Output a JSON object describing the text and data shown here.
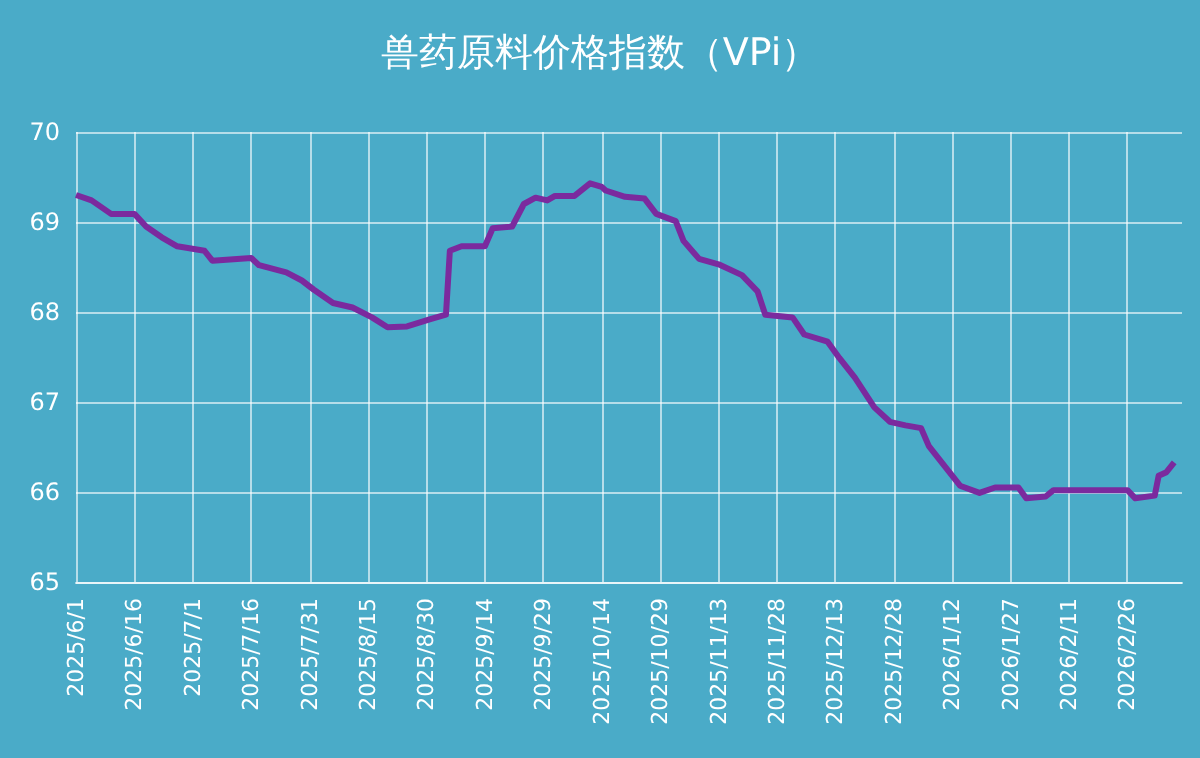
{
  "chart_data": {
    "type": "line",
    "title": "兽药原料价格指数（VPi）",
    "marker": "none",
    "grid": true,
    "xlim": [
      "2025-06-01",
      "2026-03-12"
    ],
    "xticks": [
      {
        "value": "2025-06-01",
        "label": "2025/6/1"
      },
      {
        "value": "2025-06-16",
        "label": "2025/6/16"
      },
      {
        "value": "2025-07-01",
        "label": "2025/7/1"
      },
      {
        "value": "2025-07-16",
        "label": "2025/7/16"
      },
      {
        "value": "2025-07-31",
        "label": "2025/7/31"
      },
      {
        "value": "2025-08-15",
        "label": "2025/8/15"
      },
      {
        "value": "2025-08-30",
        "label": "2025/8/30"
      },
      {
        "value": "2025-09-14",
        "label": "2025/9/14"
      },
      {
        "value": "2025-09-29",
        "label": "2025/9/29"
      },
      {
        "value": "2025-10-14",
        "label": "2025/10/14"
      },
      {
        "value": "2025-10-29",
        "label": "2025/10/29"
      },
      {
        "value": "2025-11-13",
        "label": "2025/11/13"
      },
      {
        "value": "2025-11-28",
        "label": "2025/11/28"
      },
      {
        "value": "2025-12-13",
        "label": "2025/12/13"
      },
      {
        "value": "2025-12-28",
        "label": "2025/12/28"
      },
      {
        "value": "2026-01-12",
        "label": "2026/1/12"
      },
      {
        "value": "2026-01-27",
        "label": "2026/1/27"
      },
      {
        "value": "2026-02-11",
        "label": "2026/2/11"
      },
      {
        "value": "2026-02-26",
        "label": "2026/2/26"
      }
    ],
    "ylim": [
      65,
      70
    ],
    "yticks": [
      65,
      66,
      67,
      68,
      69,
      70
    ],
    "x": [
      "2025-06-01",
      "2025-06-05",
      "2025-06-10",
      "2025-06-16",
      "2025-06-19",
      "2025-06-23",
      "2025-06-27",
      "2025-07-04",
      "2025-07-06",
      "2025-07-16",
      "2025-07-18",
      "2025-07-25",
      "2025-07-29",
      "2025-08-01",
      "2025-08-06",
      "2025-08-11",
      "2025-08-16",
      "2025-08-20",
      "2025-08-25",
      "2025-08-31",
      "2025-09-04",
      "2025-09-05",
      "2025-09-08",
      "2025-09-14",
      "2025-09-16",
      "2025-09-21",
      "2025-09-24",
      "2025-09-27",
      "2025-09-30",
      "2025-10-02",
      "2025-10-07",
      "2025-10-11",
      "2025-10-14",
      "2025-10-15",
      "2025-10-20",
      "2025-10-25",
      "2025-10-28",
      "2025-11-02",
      "2025-11-04",
      "2025-11-08",
      "2025-11-13",
      "2025-11-19",
      "2025-11-23",
      "2025-11-25",
      "2025-12-02",
      "2025-12-05",
      "2025-12-11",
      "2025-12-14",
      "2025-12-18",
      "2025-12-23",
      "2025-12-27",
      "2025-12-31",
      "2026-01-04",
      "2026-01-06",
      "2026-01-10",
      "2026-01-14",
      "2026-01-19",
      "2026-01-23",
      "2026-01-29",
      "2026-01-31",
      "2026-02-05",
      "2026-02-07",
      "2026-02-26",
      "2026-02-28",
      "2026-03-05",
      "2026-03-06",
      "2026-03-08",
      "2026-03-10"
    ],
    "series": [
      {
        "color": "#7b2a9e",
        "values": [
          69.3,
          69.24,
          69.09,
          69.09,
          68.95,
          68.83,
          68.73,
          68.68,
          68.57,
          68.6,
          68.52,
          68.44,
          68.35,
          68.25,
          68.1,
          68.05,
          67.94,
          67.83,
          67.84,
          67.92,
          67.97,
          68.68,
          68.73,
          68.73,
          68.93,
          68.95,
          69.2,
          69.27,
          69.24,
          69.29,
          69.29,
          69.43,
          69.39,
          69.35,
          69.28,
          69.26,
          69.09,
          69.01,
          68.79,
          68.59,
          68.53,
          68.41,
          68.23,
          67.97,
          67.94,
          67.75,
          67.67,
          67.49,
          67.27,
          66.94,
          66.78,
          66.74,
          66.71,
          66.51,
          66.29,
          66.07,
          65.99,
          66.05,
          66.05,
          65.93,
          65.95,
          66.02,
          66.02,
          65.93,
          65.96,
          66.18,
          66.22,
          66.33
        ]
      }
    ]
  }
}
